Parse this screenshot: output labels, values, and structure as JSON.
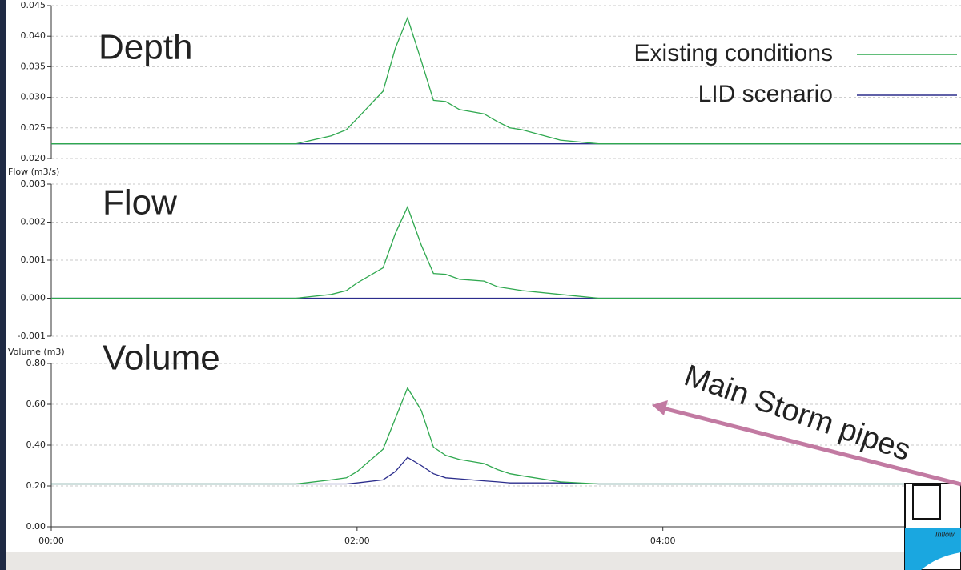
{
  "chart_data": [
    {
      "type": "line",
      "title": "Depth",
      "x": [
        0,
        1.6,
        1.83,
        1.93,
        2.0,
        2.17,
        2.25,
        2.33,
        2.42,
        2.5,
        2.58,
        2.67,
        2.83,
        2.92,
        3.0,
        3.08,
        3.33,
        3.58,
        5.95
      ],
      "series": [
        {
          "name": "LID scenario",
          "color": "#2b2d8c",
          "values": [
            0.0224,
            0.0224,
            0.0224,
            0.0224,
            0.0224,
            0.0224,
            0.0224,
            0.0224,
            0.0224,
            0.0224,
            0.0224,
            0.0224,
            0.0224,
            0.0224,
            0.0224,
            0.0224,
            0.0224,
            0.0224,
            0.0224
          ]
        },
        {
          "name": "Existing conditions",
          "color": "#2fa84f",
          "values": [
            0.0224,
            0.0224,
            0.0237,
            0.0247,
            0.0265,
            0.031,
            0.038,
            0.043,
            0.036,
            0.0295,
            0.0293,
            0.028,
            0.0273,
            0.026,
            0.025,
            0.0247,
            0.023,
            0.0224,
            0.0224
          ]
        }
      ],
      "xlim": [
        0,
        5.95
      ],
      "ylim": [
        0.02,
        0.045
      ],
      "yticks": [
        {
          "value": 0.02,
          "label": "0.020"
        },
        0.025,
        {
          "value": 0.03,
          "label": "0.030"
        },
        0.035,
        {
          "value": 0.04,
          "label": "0.040"
        },
        0.045
      ],
      "grid": true
    },
    {
      "type": "line",
      "title": "Flow",
      "y_label": "Flow (m3/s)",
      "x": [
        0,
        1.6,
        1.83,
        1.93,
        2.0,
        2.17,
        2.25,
        2.33,
        2.42,
        2.5,
        2.58,
        2.67,
        2.83,
        2.92,
        3.0,
        3.08,
        3.33,
        3.58,
        5.95
      ],
      "series": [
        {
          "color": "#2b2d8c",
          "values": [
            0,
            0,
            0,
            0,
            0,
            0,
            0,
            0,
            0,
            0,
            0,
            0,
            0,
            0,
            0,
            0,
            0,
            0,
            0
          ]
        },
        {
          "color": "#2fa84f",
          "values": [
            0,
            0,
            0.0001,
            0.0002,
            0.0004,
            0.0008,
            0.0017,
            0.0024,
            0.0014,
            0.00065,
            0.00063,
            0.0005,
            0.00045,
            0.0003,
            0.00025,
            0.0002,
            0.0001,
            0,
            0
          ]
        }
      ],
      "xlim": [
        0,
        5.95
      ],
      "ylim": [
        -0.001,
        0.003
      ],
      "yticks": [
        -0.001,
        {
          "value": 0,
          "label": "0.000"
        },
        0.001,
        0.002,
        0.003
      ],
      "grid": true
    },
    {
      "type": "line",
      "title": "Volume",
      "y_label": "Volume (m3)",
      "x": [
        0,
        1.6,
        1.83,
        1.93,
        2.0,
        2.17,
        2.25,
        2.33,
        2.42,
        2.5,
        2.58,
        2.67,
        2.83,
        2.92,
        3.0,
        3.08,
        3.33,
        3.58,
        5.95
      ],
      "series": [
        {
          "color": "#2b2d8c",
          "values": [
            0.21,
            0.21,
            0.21,
            0.21,
            0.215,
            0.23,
            0.27,
            0.34,
            0.3,
            0.26,
            0.24,
            0.235,
            0.225,
            0.22,
            0.215,
            0.215,
            0.215,
            0.21,
            0.21
          ]
        },
        {
          "color": "#2fa84f",
          "values": [
            0.21,
            0.21,
            0.23,
            0.24,
            0.27,
            0.38,
            0.53,
            0.68,
            0.57,
            0.39,
            0.35,
            0.33,
            0.31,
            0.28,
            0.26,
            0.25,
            0.22,
            0.21,
            0.21
          ]
        }
      ],
      "xlim": [
        0,
        5.95
      ],
      "ylim": [
        0,
        0.8
      ],
      "yticks": [
        {
          "value": 0,
          "label": "0.00"
        },
        {
          "value": 0.2,
          "label": "0.20"
        },
        {
          "value": 0.4,
          "label": "0.40"
        },
        {
          "value": 0.6,
          "label": "0.60"
        },
        {
          "value": 0.8,
          "label": "0.80"
        }
      ],
      "xticks": [
        {
          "value": 0,
          "label": "00:00"
        },
        {
          "value": 2,
          "label": "02:00"
        },
        {
          "value": 4,
          "label": "04:00"
        }
      ],
      "grid": true
    }
  ],
  "annotation": "Main Storm pipes",
  "inset_label": "Inflow"
}
